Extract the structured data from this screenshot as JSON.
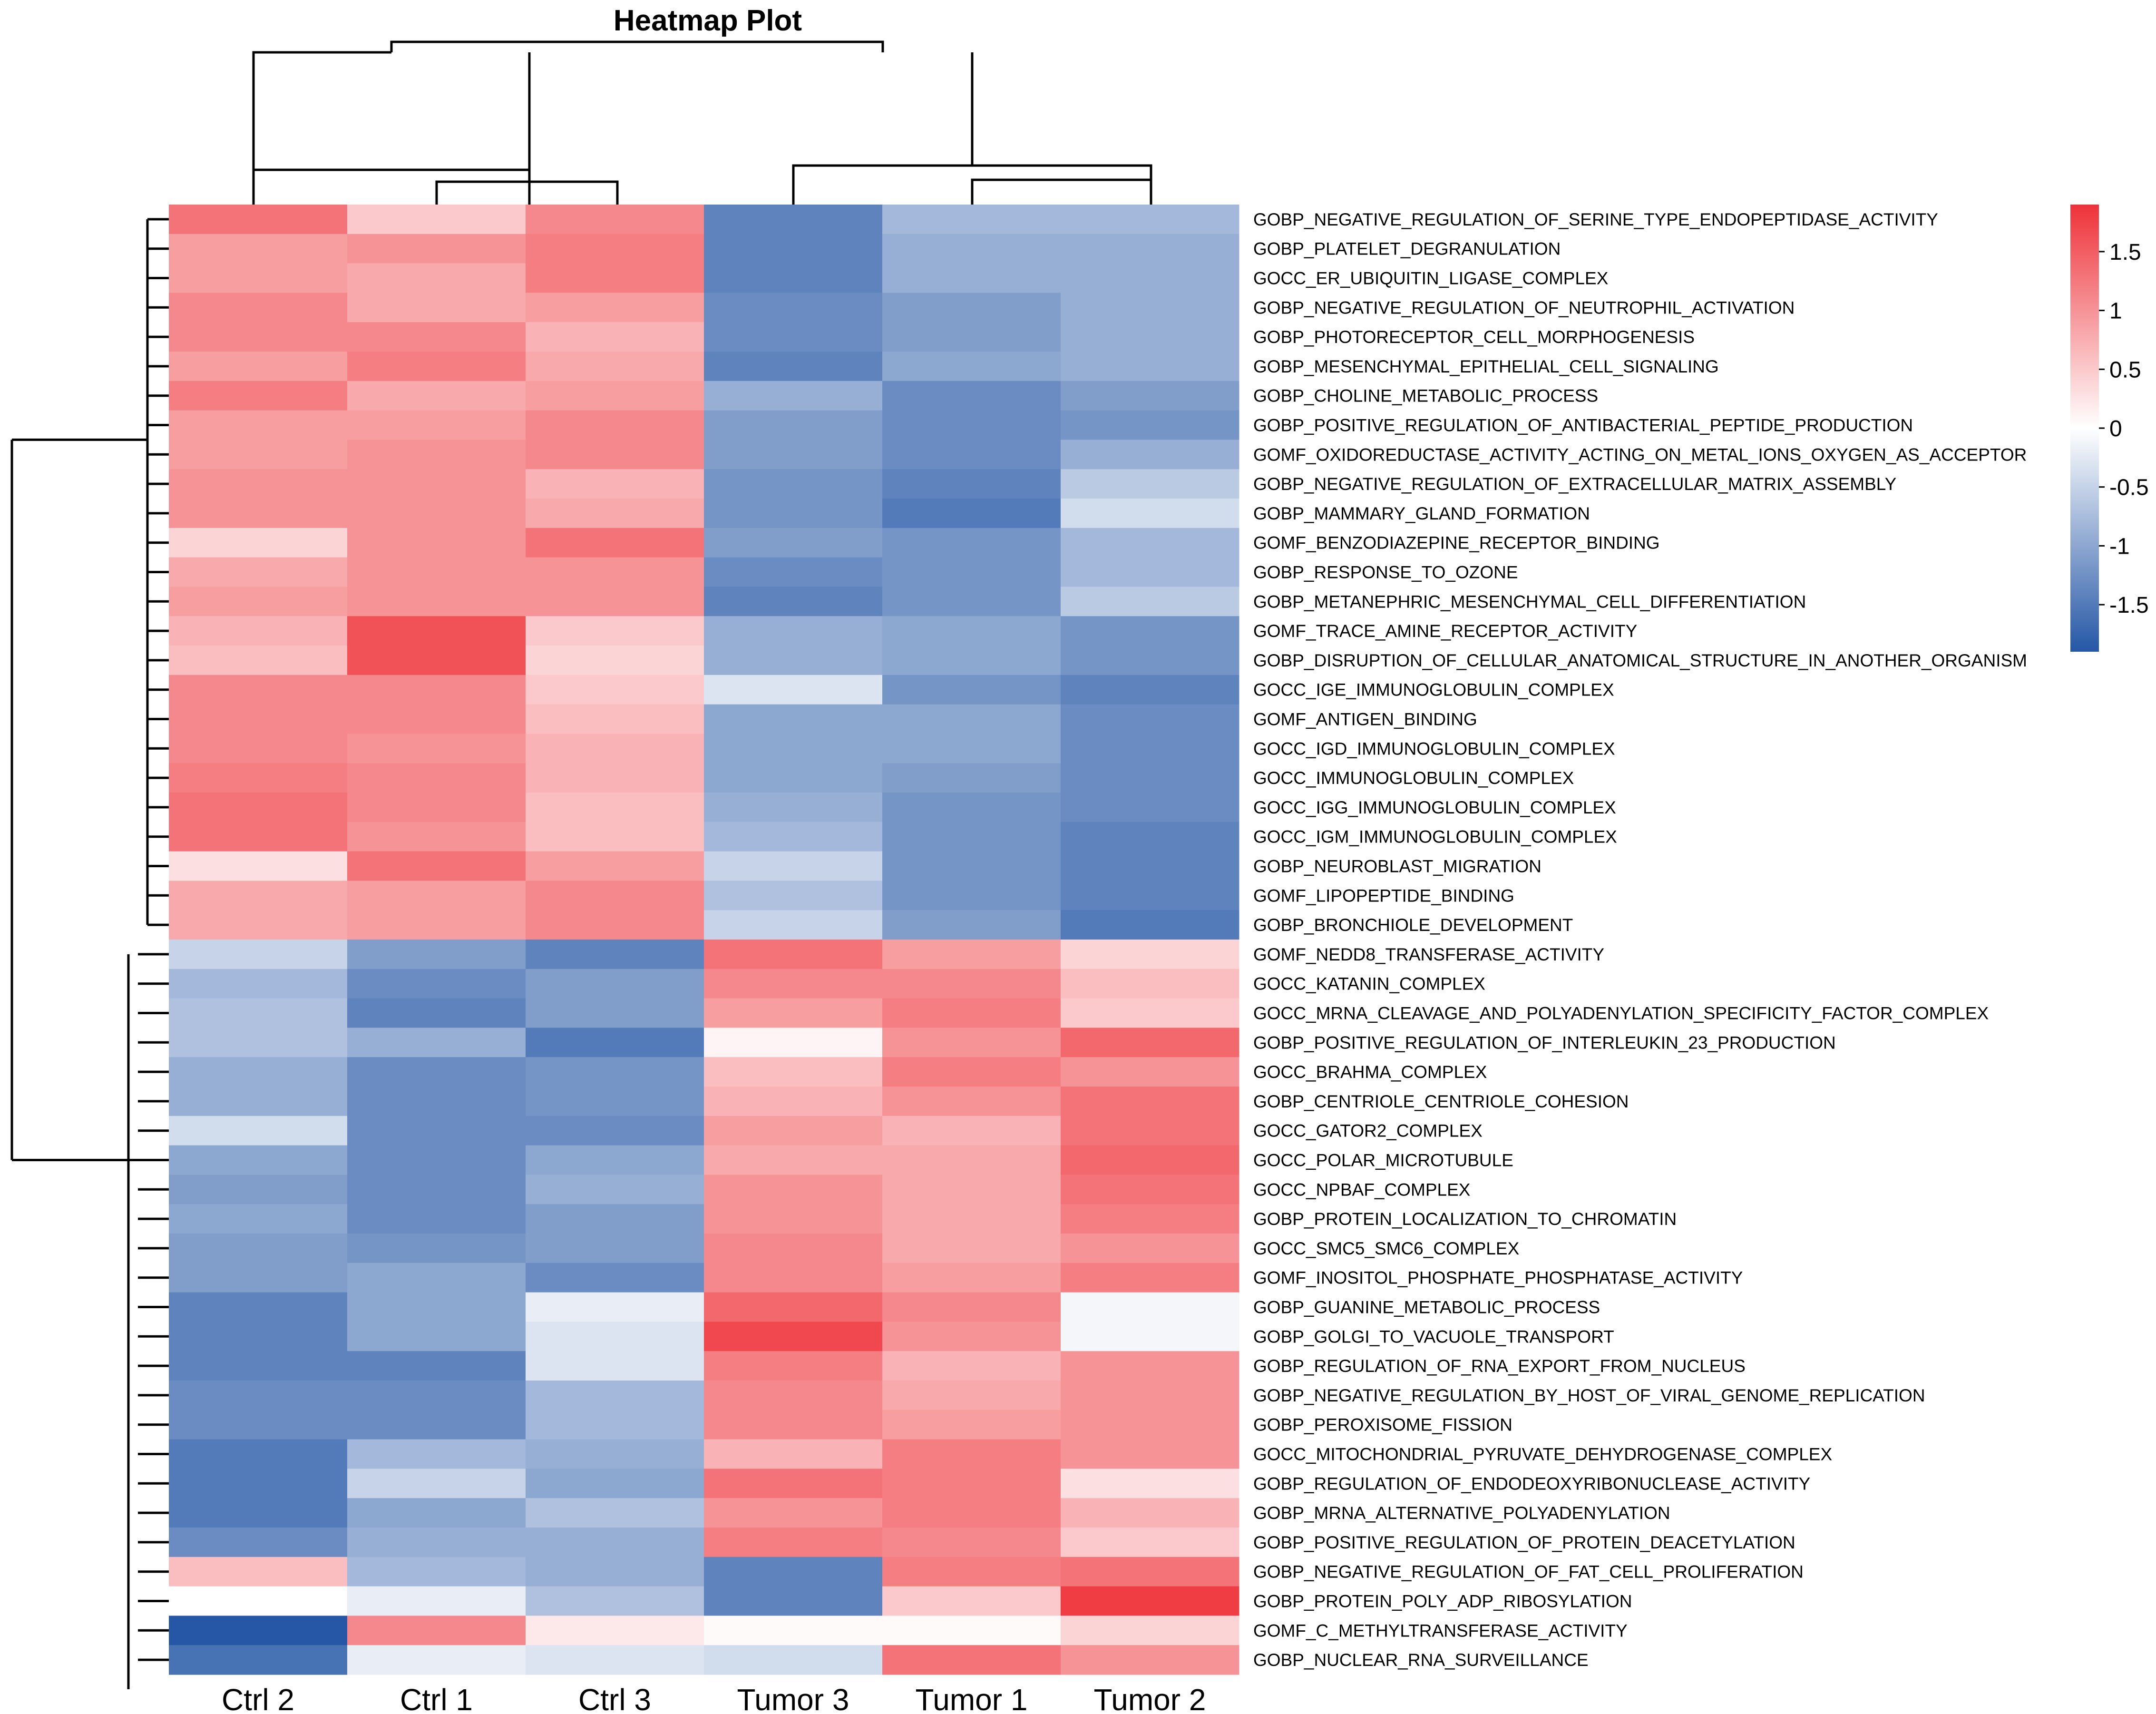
{
  "chart_data": {
    "type": "heatmap",
    "title": "Heatmap Plot",
    "columns": [
      "Ctrl 2",
      "Ctrl 1",
      "Ctrl 3",
      "Tumor 3",
      "Tumor 1",
      "Tumor 2"
    ],
    "rows": [
      "GOBP_NEGATIVE_REGULATION_OF_SERINE_TYPE_ENDOPEPTIDASE_ACTIVITY",
      "GOBP_PLATELET_DEGRANULATION",
      "GOCC_ER_UBIQUITIN_LIGASE_COMPLEX",
      "GOBP_NEGATIVE_REGULATION_OF_NEUTROPHIL_ACTIVATION",
      "GOBP_PHOTORECEPTOR_CELL_MORPHOGENESIS",
      "GOBP_MESENCHYMAL_EPITHELIAL_CELL_SIGNALING",
      "GOBP_CHOLINE_METABOLIC_PROCESS",
      "GOBP_POSITIVE_REGULATION_OF_ANTIBACTERIAL_PEPTIDE_PRODUCTION",
      "GOMF_OXIDOREDUCTASE_ACTIVITY_ACTING_ON_METAL_IONS_OXYGEN_AS_ACCEPTOR",
      "GOBP_NEGATIVE_REGULATION_OF_EXTRACELLULAR_MATRIX_ASSEMBLY",
      "GOBP_MAMMARY_GLAND_FORMATION",
      "GOMF_BENZODIAZEPINE_RECEPTOR_BINDING",
      "GOBP_RESPONSE_TO_OZONE",
      "GOBP_METANEPHRIC_MESENCHYMAL_CELL_DIFFERENTIATION",
      "GOMF_TRACE_AMINE_RECEPTOR_ACTIVITY",
      "GOBP_DISRUPTION_OF_CELLULAR_ANATOMICAL_STRUCTURE_IN_ANOTHER_ORGANISM",
      "GOCC_IGE_IMMUNOGLOBULIN_COMPLEX",
      "GOMF_ANTIGEN_BINDING",
      "GOCC_IGD_IMMUNOGLOBULIN_COMPLEX",
      "GOCC_IMMUNOGLOBULIN_COMPLEX",
      "GOCC_IGG_IMMUNOGLOBULIN_COMPLEX",
      "GOCC_IGM_IMMUNOGLOBULIN_COMPLEX",
      "GOBP_NEUROBLAST_MIGRATION",
      "GOMF_LIPOPEPTIDE_BINDING",
      "GOBP_BRONCHIOLE_DEVELOPMENT",
      "GOMF_NEDD8_TRANSFERASE_ACTIVITY",
      "GOCC_KATANIN_COMPLEX",
      "GOCC_MRNA_CLEAVAGE_AND_POLYADENYLATION_SPECIFICITY_FACTOR_COMPLEX",
      "GOBP_POSITIVE_REGULATION_OF_INTERLEUKIN_23_PRODUCTION",
      "GOCC_BRAHMA_COMPLEX",
      "GOBP_CENTRIOLE_CENTRIOLE_COHESION",
      "GOCC_GATOR2_COMPLEX",
      "GOCC_POLAR_MICROTUBULE",
      "GOCC_NPBAF_COMPLEX",
      "GOBP_PROTEIN_LOCALIZATION_TO_CHROMATIN",
      "GOCC_SMC5_SMC6_COMPLEX",
      "GOMF_INOSITOL_PHOSPHATE_PHOSPHATASE_ACTIVITY",
      "GOBP_GUANINE_METABOLIC_PROCESS",
      "GOBP_GOLGI_TO_VACUOLE_TRANSPORT",
      "GOBP_REGULATION_OF_RNA_EXPORT_FROM_NUCLEUS",
      "GOBP_NEGATIVE_REGULATION_BY_HOST_OF_VIRAL_GENOME_REPLICATION",
      "GOBP_PEROXISOME_FISSION",
      "GOCC_MITOCHONDRIAL_PYRUVATE_DEHYDROGENASE_COMPLEX",
      "GOBP_REGULATION_OF_ENDODEOXYRIBONUCLEASE_ACTIVITY",
      "GOBP_MRNA_ALTERNATIVE_POLYADENYLATION",
      "GOBP_POSITIVE_REGULATION_OF_PROTEIN_DEACETYLATION",
      "GOBP_NEGATIVE_REGULATION_OF_FAT_CELL_PROLIFERATION",
      "GOBP_PROTEIN_POLY_ADP_RIBOSYLATION",
      "GOMF_C_METHYLTRANSFERASE_ACTIVITY",
      "GOBP_NUCLEAR_RNA_SURVEILLANCE"
    ],
    "values": [
      [
        1.3,
        0.5,
        1.1,
        -1.4,
        -0.8,
        -0.8
      ],
      [
        0.9,
        1.0,
        1.2,
        -1.4,
        -0.9,
        -0.9
      ],
      [
        0.9,
        0.8,
        1.2,
        -1.4,
        -0.9,
        -0.9
      ],
      [
        1.1,
        0.8,
        0.9,
        -1.3,
        -1.1,
        -0.9
      ],
      [
        1.1,
        1.1,
        0.7,
        -1.3,
        -1.1,
        -0.9
      ],
      [
        0.9,
        1.2,
        0.8,
        -1.4,
        -1.0,
        -0.9
      ],
      [
        1.2,
        0.8,
        0.9,
        -0.9,
        -1.3,
        -1.1
      ],
      [
        0.9,
        0.9,
        1.1,
        -1.1,
        -1.3,
        -1.2
      ],
      [
        0.9,
        1.0,
        1.1,
        -1.1,
        -1.3,
        -0.9
      ],
      [
        1.0,
        1.0,
        0.7,
        -1.2,
        -1.4,
        -0.6
      ],
      [
        1.0,
        1.0,
        0.8,
        -1.2,
        -1.5,
        -0.4
      ],
      [
        0.4,
        1.0,
        1.3,
        -1.1,
        -1.2,
        -0.8
      ],
      [
        0.8,
        1.0,
        1.0,
        -1.3,
        -1.2,
        -0.8
      ],
      [
        0.9,
        1.0,
        1.0,
        -1.4,
        -1.2,
        -0.6
      ],
      [
        0.7,
        1.6,
        0.5,
        -0.9,
        -1.0,
        -1.2
      ],
      [
        0.6,
        1.6,
        0.4,
        -0.9,
        -1.0,
        -1.2
      ],
      [
        1.1,
        1.1,
        0.5,
        -0.3,
        -1.2,
        -1.4
      ],
      [
        1.1,
        1.1,
        0.6,
        -1.0,
        -1.0,
        -1.3
      ],
      [
        1.1,
        1.0,
        0.7,
        -1.0,
        -1.0,
        -1.3
      ],
      [
        1.2,
        1.1,
        0.7,
        -1.0,
        -1.1,
        -1.3
      ],
      [
        1.3,
        1.1,
        0.6,
        -0.9,
        -1.2,
        -1.3
      ],
      [
        1.3,
        1.0,
        0.6,
        -0.8,
        -1.2,
        -1.4
      ],
      [
        0.3,
        1.3,
        0.9,
        -0.5,
        -1.2,
        -1.4
      ],
      [
        0.8,
        0.9,
        1.1,
        -0.7,
        -1.2,
        -1.4
      ],
      [
        0.8,
        0.9,
        1.1,
        -0.5,
        -1.1,
        -1.5
      ],
      [
        -0.5,
        -1.1,
        -1.4,
        1.3,
        0.9,
        0.4
      ],
      [
        -0.8,
        -1.3,
        -1.1,
        1.1,
        1.1,
        0.6
      ],
      [
        -0.7,
        -1.4,
        -1.1,
        0.9,
        1.2,
        0.5
      ],
      [
        -0.7,
        -0.9,
        -1.5,
        0.1,
        1.0,
        1.4
      ],
      [
        -0.9,
        -1.3,
        -1.2,
        0.6,
        1.2,
        1.0
      ],
      [
        -0.9,
        -1.3,
        -1.2,
        0.7,
        1.0,
        1.3
      ],
      [
        -0.4,
        -1.3,
        -1.3,
        0.9,
        0.7,
        1.3
      ],
      [
        -1.0,
        -1.3,
        -1.0,
        0.8,
        0.8,
        1.4
      ],
      [
        -1.1,
        -1.3,
        -0.9,
        1.0,
        0.8,
        1.3
      ],
      [
        -1.0,
        -1.3,
        -1.1,
        1.0,
        0.8,
        1.2
      ],
      [
        -1.1,
        -1.2,
        -1.1,
        1.1,
        0.8,
        1.0
      ],
      [
        -1.1,
        -1.0,
        -1.3,
        1.1,
        0.9,
        1.2
      ],
      [
        -1.4,
        -1.0,
        -0.2,
        1.4,
        1.1,
        -0.1
      ],
      [
        -1.4,
        -1.0,
        -0.3,
        1.7,
        1.0,
        -0.1
      ],
      [
        -1.4,
        -1.4,
        -0.3,
        1.2,
        0.7,
        1.0
      ],
      [
        -1.3,
        -1.3,
        -0.8,
        1.1,
        0.8,
        1.0
      ],
      [
        -1.3,
        -1.3,
        -0.8,
        1.1,
        0.9,
        1.0
      ],
      [
        -1.5,
        -0.8,
        -0.9,
        0.7,
        1.2,
        1.0
      ],
      [
        -1.5,
        -0.5,
        -1.0,
        1.3,
        1.2,
        0.3
      ],
      [
        -1.5,
        -1.0,
        -0.7,
        1.0,
        1.2,
        0.7
      ],
      [
        -1.3,
        -0.9,
        -0.9,
        1.2,
        1.1,
        0.5
      ],
      [
        0.6,
        -0.8,
        -0.9,
        -1.4,
        1.2,
        1.3
      ],
      [
        0.0,
        -0.2,
        -0.7,
        -1.4,
        0.5,
        1.8
      ],
      [
        -1.9,
        1.1,
        0.2,
        0.05,
        0.05,
        0.4
      ],
      [
        -1.6,
        -0.2,
        -0.3,
        -0.4,
        1.3,
        1.0
      ]
    ],
    "colorbar": {
      "ticks": [
        "1.5",
        "1",
        "0.5",
        "0",
        "-0.5",
        "-1",
        "-1.5"
      ],
      "tick_values": [
        1.5,
        1,
        0.5,
        0,
        -0.5,
        -1,
        -1.5
      ],
      "range": [
        -1.9,
        1.9
      ],
      "low_color": "#2557A6",
      "mid_color": "#FFFFFF",
      "high_color": "#EE3239"
    }
  }
}
